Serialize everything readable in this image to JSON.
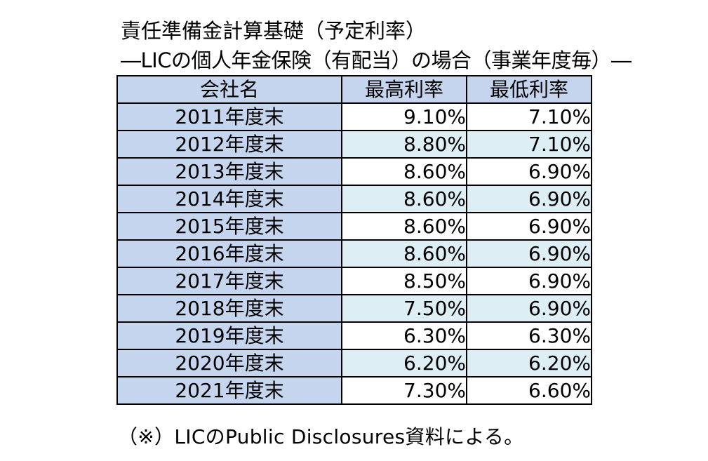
{
  "title": "責任準備金計算基礎（予定利率）",
  "subtitle": "―LICの個人年金保険（有配当）の場合（事業年度毎）―",
  "table": {
    "headers": [
      "会社名",
      "最高利率",
      "最低利率"
    ],
    "rows": [
      {
        "year": "2011年度末",
        "max": "9.10%",
        "min": "7.10%"
      },
      {
        "year": "2012年度末",
        "max": "8.80%",
        "min": "7.10%"
      },
      {
        "year": "2013年度末",
        "max": "8.60%",
        "min": "6.90%"
      },
      {
        "year": "2014年度末",
        "max": "8.60%",
        "min": "6.90%"
      },
      {
        "year": "2015年度末",
        "max": "8.60%",
        "min": "6.90%"
      },
      {
        "year": "2016年度末",
        "max": "8.60%",
        "min": "6.90%"
      },
      {
        "year": "2017年度末",
        "max": "8.50%",
        "min": "6.90%"
      },
      {
        "year": "2018年度末",
        "max": "7.50%",
        "min": "6.90%"
      },
      {
        "year": "2019年度末",
        "max": "6.30%",
        "min": "6.30%"
      },
      {
        "year": "2020年度末",
        "max": "6.20%",
        "min": "6.20%"
      },
      {
        "year": "2021年度末",
        "max": "7.30%",
        "min": "6.60%"
      }
    ]
  },
  "footnote": "（※）LICのPublic Disclosures資料による。",
  "colors": {
    "header_bg": "#c6d5ee",
    "year_bg": "#c6d5ee",
    "row_odd_bg": "#ffffff",
    "row_even_bg": "#ddeef4",
    "border": "#000000"
  }
}
